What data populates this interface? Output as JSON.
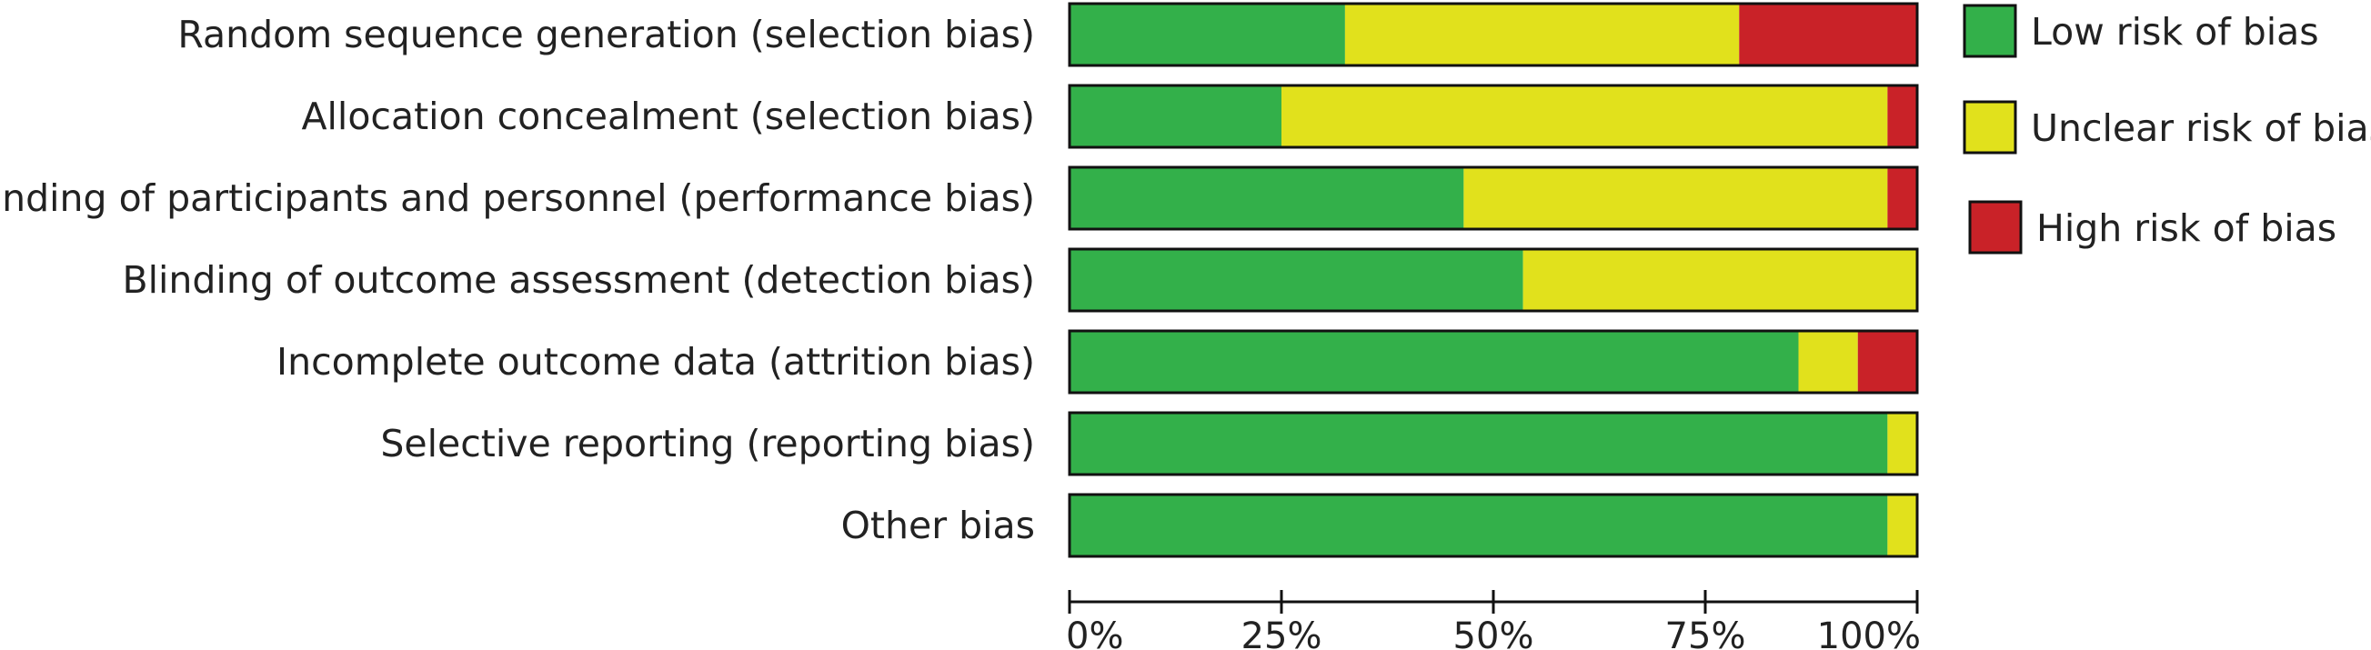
{
  "chart_data": {
    "type": "bar",
    "stacked": true,
    "orientation": "horizontal",
    "categories": [
      "Random sequence generation (selection bias)",
      "Allocation concealment (selection bias)",
      "Blinding of participants and personnel (performance bias)",
      "Blinding of outcome assessment (detection bias)",
      "Incomplete outcome data (attrition bias)",
      "Selective reporting (reporting bias)",
      "Other bias"
    ],
    "series": [
      {
        "name": "Low risk of bias",
        "color": "#33b04a",
        "values": [
          32.5,
          25,
          46.5,
          53.5,
          86,
          96.5,
          96.5
        ]
      },
      {
        "name": "Unclear risk of bias",
        "color": "#e1e11c",
        "values": [
          46.5,
          71.5,
          50,
          46.5,
          7,
          3.5,
          3.5
        ]
      },
      {
        "name": "High risk of bias",
        "color": "#c92228",
        "values": [
          21,
          3.5,
          3.5,
          0,
          7,
          0,
          0
        ]
      }
    ],
    "xlim": [
      0,
      100
    ],
    "xticks": [
      "0%",
      "25%",
      "50%",
      "75%",
      "100%"
    ],
    "title": "",
    "xlabel": "",
    "ylabel": "",
    "legend_position": "right"
  }
}
